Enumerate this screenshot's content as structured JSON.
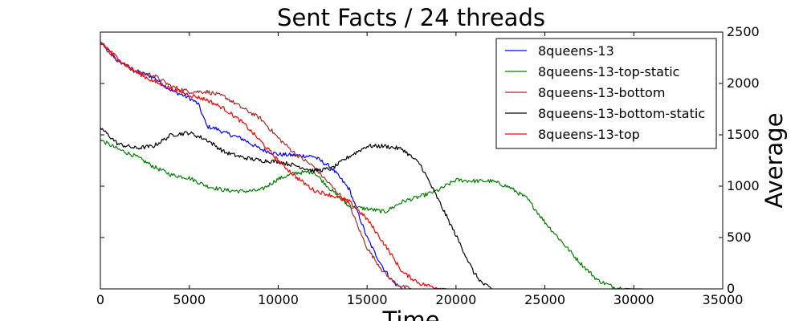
{
  "chart_data": {
    "type": "line",
    "title": "Sent Facts / 24 threads",
    "xlabel": "Time",
    "ylabel": "Average",
    "xlim": [
      0,
      35000
    ],
    "ylim": [
      0,
      2500
    ],
    "xticks": [
      "0",
      "5000",
      "10000",
      "15000",
      "20000",
      "25000",
      "30000",
      "35000"
    ],
    "yticks": [
      "0",
      "500",
      "1000",
      "1500",
      "2000",
      "2500"
    ],
    "y_axis_side": "right",
    "grid": false,
    "legend_position": "top-right",
    "series": [
      {
        "name": "8queens-13",
        "color": "#0000ff",
        "x": [
          0,
          1000,
          2000,
          3000,
          4000,
          5000,
          5500,
          6000,
          6500,
          7000,
          8000,
          9000,
          10000,
          11000,
          12000,
          13000,
          14000,
          15000,
          15500,
          16000,
          16500,
          17000
        ],
        "y": [
          2400,
          2220,
          2120,
          2060,
          1930,
          1860,
          1800,
          1580,
          1560,
          1520,
          1460,
          1360,
          1310,
          1300,
          1290,
          1180,
          970,
          500,
          330,
          180,
          60,
          0
        ]
      },
      {
        "name": "8queens-13-top-static",
        "color": "#008000",
        "x": [
          0,
          1000,
          2000,
          3000,
          4000,
          5000,
          6000,
          7000,
          8000,
          9000,
          10000,
          11000,
          12000,
          13000,
          14000,
          15000,
          16000,
          17000,
          18000,
          19000,
          20000,
          21000,
          22000,
          23000,
          24000,
          25000,
          26000,
          27000,
          28000,
          29000,
          30000,
          30500
        ],
        "y": [
          1450,
          1360,
          1290,
          1190,
          1110,
          1080,
          1000,
          960,
          950,
          960,
          1070,
          1130,
          1140,
          960,
          800,
          780,
          750,
          850,
          900,
          960,
          1060,
          1050,
          1050,
          990,
          880,
          650,
          450,
          250,
          80,
          10,
          0,
          0
        ]
      },
      {
        "name": "8queens-13-bottom",
        "color": "#a52a2a",
        "x": [
          0,
          1000,
          2000,
          3000,
          4000,
          5000,
          6000,
          7000,
          8000,
          9000,
          10000,
          11000,
          12000,
          13000,
          14000,
          14500,
          15000,
          15500,
          16000,
          16500,
          17000,
          17500
        ],
        "y": [
          2390,
          2220,
          2110,
          2080,
          1970,
          1920,
          1920,
          1870,
          1760,
          1660,
          1470,
          1310,
          1190,
          1000,
          820,
          600,
          400,
          270,
          150,
          70,
          20,
          0
        ]
      },
      {
        "name": "8queens-13-bottom-static",
        "color": "#000000",
        "x": [
          0,
          1000,
          2000,
          3000,
          4000,
          5000,
          6000,
          7000,
          8000,
          9000,
          10000,
          11000,
          12000,
          13000,
          14000,
          15000,
          16000,
          17000,
          18000,
          19000,
          20000,
          21000,
          21500,
          22000
        ],
        "y": [
          1570,
          1410,
          1370,
          1390,
          1500,
          1520,
          1450,
          1330,
          1280,
          1250,
          1240,
          1200,
          1150,
          1170,
          1290,
          1390,
          1390,
          1360,
          1210,
          870,
          520,
          160,
          50,
          0
        ]
      },
      {
        "name": "8queens-13-top",
        "color": "#ff0000",
        "x": [
          0,
          1000,
          2000,
          3000,
          4000,
          5000,
          6000,
          7000,
          8000,
          9000,
          10000,
          11000,
          12000,
          13000,
          14000,
          15000,
          16000,
          17000,
          18000,
          19000,
          19500
        ],
        "y": [
          2410,
          2240,
          2110,
          2020,
          1950,
          1890,
          1840,
          1750,
          1620,
          1440,
          1250,
          1090,
          960,
          910,
          850,
          680,
          430,
          160,
          50,
          10,
          0
        ]
      }
    ]
  }
}
